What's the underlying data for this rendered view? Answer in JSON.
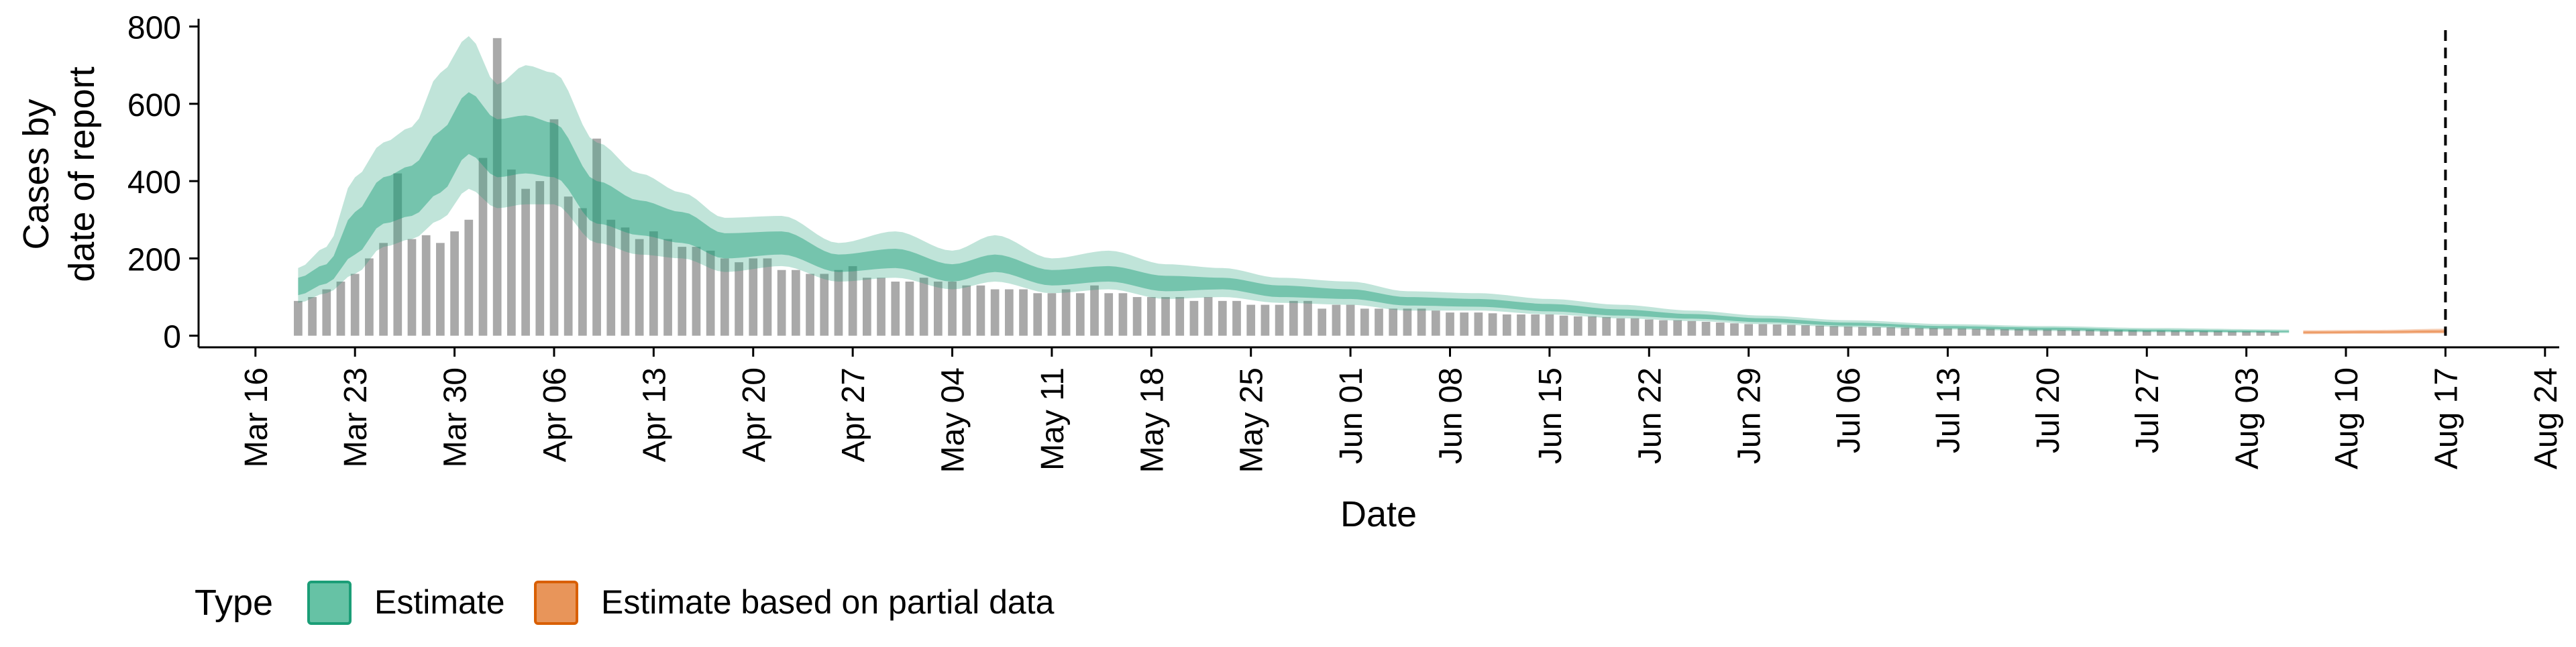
{
  "chart_data": {
    "type": "bar",
    "xlabel": "Date",
    "ylabel_lines": [
      "Cases by",
      "date of report"
    ],
    "x_range": [
      "2020-03-12",
      "2020-08-25"
    ],
    "ylim": [
      -30,
      820
    ],
    "y_ticks": [
      0,
      200,
      400,
      600,
      800
    ],
    "x_ticks": [
      {
        "date": "2020-03-16",
        "label": "Mar 16"
      },
      {
        "date": "2020-03-23",
        "label": "Mar 23"
      },
      {
        "date": "2020-03-30",
        "label": "Mar 30"
      },
      {
        "date": "2020-04-06",
        "label": "Apr 06"
      },
      {
        "date": "2020-04-13",
        "label": "Apr 13"
      },
      {
        "date": "2020-04-20",
        "label": "Apr 20"
      },
      {
        "date": "2020-04-27",
        "label": "Apr 27"
      },
      {
        "date": "2020-05-04",
        "label": "May 04"
      },
      {
        "date": "2020-05-11",
        "label": "May 11"
      },
      {
        "date": "2020-05-18",
        "label": "May 18"
      },
      {
        "date": "2020-05-25",
        "label": "May 25"
      },
      {
        "date": "2020-06-01",
        "label": "Jun 01"
      },
      {
        "date": "2020-06-08",
        "label": "Jun 08"
      },
      {
        "date": "2020-06-15",
        "label": "Jun 15"
      },
      {
        "date": "2020-06-22",
        "label": "Jun 22"
      },
      {
        "date": "2020-06-29",
        "label": "Jun 29"
      },
      {
        "date": "2020-07-06",
        "label": "Jul 06"
      },
      {
        "date": "2020-07-13",
        "label": "Jul 13"
      },
      {
        "date": "2020-07-20",
        "label": "Jul 20"
      },
      {
        "date": "2020-07-27",
        "label": "Jul 27"
      },
      {
        "date": "2020-08-03",
        "label": "Aug 03"
      },
      {
        "date": "2020-08-10",
        "label": "Aug 10"
      },
      {
        "date": "2020-08-17",
        "label": "Aug 17"
      },
      {
        "date": "2020-08-24",
        "label": "Aug 24"
      }
    ],
    "reference_line": {
      "date": "2020-08-17",
      "style": "dashed"
    },
    "grid": false,
    "legend": {
      "title": "Type",
      "position": "bottom-left",
      "items": [
        {
          "label": "Estimate",
          "fill": "#66C2A5",
          "stroke": "#1B9E77"
        },
        {
          "label": "Estimate based on partial data",
          "fill": "#E8955A",
          "stroke": "#D95F02"
        }
      ]
    },
    "colors": {
      "bars": "#A9A9A9",
      "estimate": "#1B9E77",
      "partial": "#E7752A",
      "reference_line": "#000000"
    },
    "reported_cases": {
      "start_date": "2020-03-19",
      "values": [
        90,
        100,
        120,
        140,
        160,
        200,
        240,
        420,
        250,
        260,
        240,
        270,
        300,
        460,
        770,
        430,
        380,
        400,
        560,
        360,
        330,
        510,
        300,
        280,
        250,
        270,
        250,
        230,
        230,
        220,
        200,
        190,
        200,
        200,
        170,
        170,
        160,
        160,
        170,
        180,
        150,
        150,
        140,
        140,
        150,
        140,
        140,
        130,
        130,
        120,
        120,
        120,
        110,
        110,
        120,
        110,
        130,
        110,
        110,
        100,
        100,
        100,
        100,
        90,
        100,
        90,
        90,
        80,
        80,
        80,
        90,
        90,
        70,
        80,
        80,
        70,
        70,
        70,
        70,
        70,
        65,
        60,
        60,
        60,
        58,
        55,
        55,
        55,
        55,
        52,
        50,
        50,
        48,
        45,
        45,
        42,
        40,
        40,
        38,
        36,
        34,
        32,
        30,
        30,
        29,
        28,
        27,
        26,
        25,
        24,
        23,
        22,
        22,
        21,
        20,
        20,
        19,
        19,
        18,
        18,
        17,
        17,
        16,
        16,
        15,
        15,
        15,
        14,
        14,
        14,
        13,
        13,
        13,
        12,
        12,
        12,
        11,
        11,
        11,
        10
      ]
    },
    "estimate": {
      "label": "Estimate",
      "start_date": "2020-03-19",
      "end_date": "2020-08-06",
      "knots": [
        {
          "date": "2020-03-19",
          "q05": 85,
          "q20": 105,
          "q50": 130,
          "q80": 150,
          "q95": 175
        },
        {
          "date": "2020-03-21",
          "q05": 110,
          "q20": 135,
          "q50": 165,
          "q80": 185,
          "q95": 230
        },
        {
          "date": "2020-03-23",
          "q05": 160,
          "q20": 210,
          "q50": 270,
          "q80": 320,
          "q95": 410
        },
        {
          "date": "2020-03-25",
          "q05": 230,
          "q20": 290,
          "q50": 350,
          "q80": 410,
          "q95": 500
        },
        {
          "date": "2020-03-27",
          "q05": 250,
          "q20": 310,
          "q50": 380,
          "q80": 440,
          "q95": 540
        },
        {
          "date": "2020-03-29",
          "q05": 300,
          "q20": 370,
          "q50": 450,
          "q80": 530,
          "q95": 680
        },
        {
          "date": "2020-03-31",
          "q05": 380,
          "q20": 470,
          "q50": 560,
          "q80": 630,
          "q95": 775
        },
        {
          "date": "2020-04-02",
          "q05": 330,
          "q20": 410,
          "q50": 480,
          "q80": 560,
          "q95": 650
        },
        {
          "date": "2020-04-04",
          "q05": 340,
          "q20": 420,
          "q50": 490,
          "q80": 570,
          "q95": 700
        },
        {
          "date": "2020-04-06",
          "q05": 340,
          "q20": 410,
          "q50": 480,
          "q80": 550,
          "q95": 680
        },
        {
          "date": "2020-04-09",
          "q05": 240,
          "q20": 290,
          "q50": 350,
          "q80": 400,
          "q95": 500
        },
        {
          "date": "2020-04-12",
          "q05": 210,
          "q20": 260,
          "q50": 310,
          "q80": 350,
          "q95": 420
        },
        {
          "date": "2020-04-15",
          "q05": 200,
          "q20": 240,
          "q50": 280,
          "q80": 320,
          "q95": 370
        },
        {
          "date": "2020-04-18",
          "q05": 165,
          "q20": 200,
          "q50": 230,
          "q80": 265,
          "q95": 305
        },
        {
          "date": "2020-04-22",
          "q05": 180,
          "q20": 210,
          "q50": 240,
          "q80": 270,
          "q95": 310
        },
        {
          "date": "2020-04-26",
          "q05": 140,
          "q20": 165,
          "q50": 190,
          "q80": 210,
          "q95": 240
        },
        {
          "date": "2020-04-30",
          "q05": 150,
          "q20": 175,
          "q50": 200,
          "q80": 225,
          "q95": 270
        },
        {
          "date": "2020-05-04",
          "q05": 120,
          "q20": 140,
          "q50": 165,
          "q80": 185,
          "q95": 220
        },
        {
          "date": "2020-05-07",
          "q05": 140,
          "q20": 165,
          "q50": 190,
          "q80": 210,
          "q95": 260
        },
        {
          "date": "2020-05-11",
          "q05": 110,
          "q20": 130,
          "q50": 150,
          "q80": 170,
          "q95": 200
        },
        {
          "date": "2020-05-15",
          "q05": 120,
          "q20": 140,
          "q50": 160,
          "q80": 180,
          "q95": 220
        },
        {
          "date": "2020-05-19",
          "q05": 95,
          "q20": 115,
          "q50": 135,
          "q80": 155,
          "q95": 185
        },
        {
          "date": "2020-05-23",
          "q05": 100,
          "q20": 120,
          "q50": 135,
          "q80": 150,
          "q95": 175
        },
        {
          "date": "2020-05-27",
          "q05": 85,
          "q20": 100,
          "q50": 115,
          "q80": 130,
          "q95": 150
        },
        {
          "date": "2020-06-01",
          "q05": 80,
          "q20": 95,
          "q50": 105,
          "q80": 120,
          "q95": 140
        },
        {
          "date": "2020-06-05",
          "q05": 65,
          "q20": 78,
          "q50": 88,
          "q80": 100,
          "q95": 115
        },
        {
          "date": "2020-06-10",
          "q05": 65,
          "q20": 75,
          "q50": 85,
          "q80": 95,
          "q95": 110
        },
        {
          "date": "2020-06-15",
          "q05": 55,
          "q20": 63,
          "q50": 72,
          "q80": 82,
          "q95": 95
        },
        {
          "date": "2020-06-20",
          "q05": 45,
          "q20": 52,
          "q50": 60,
          "q80": 68,
          "q95": 80
        },
        {
          "date": "2020-06-25",
          "q05": 38,
          "q20": 44,
          "q50": 50,
          "q80": 56,
          "q95": 65
        },
        {
          "date": "2020-06-30",
          "q05": 30,
          "q20": 35,
          "q50": 40,
          "q80": 45,
          "q95": 52
        },
        {
          "date": "2020-07-06",
          "q05": 22,
          "q20": 26,
          "q50": 30,
          "q80": 34,
          "q95": 40
        },
        {
          "date": "2020-07-13",
          "q05": 16,
          "q20": 19,
          "q50": 22,
          "q80": 25,
          "q95": 30
        },
        {
          "date": "2020-07-20",
          "q05": 12,
          "q20": 15,
          "q50": 18,
          "q80": 21,
          "q95": 25
        },
        {
          "date": "2020-07-27",
          "q05": 9,
          "q20": 11,
          "q50": 13,
          "q80": 16,
          "q95": 20
        },
        {
          "date": "2020-08-06",
          "q05": 7,
          "q20": 9,
          "q50": 11,
          "q80": 13,
          "q95": 16
        }
      ]
    },
    "partial_estimate": {
      "label": "Estimate based on partial data",
      "knots": [
        {
          "date": "2020-08-07",
          "q05": 4,
          "q20": 6,
          "q50": 9,
          "q80": 11,
          "q95": 14
        },
        {
          "date": "2020-08-12",
          "q05": 5,
          "q20": 7,
          "q50": 10,
          "q80": 12,
          "q95": 15
        },
        {
          "date": "2020-08-17",
          "q05": 6,
          "q20": 8,
          "q50": 11,
          "q80": 14,
          "q95": 18
        }
      ]
    }
  }
}
